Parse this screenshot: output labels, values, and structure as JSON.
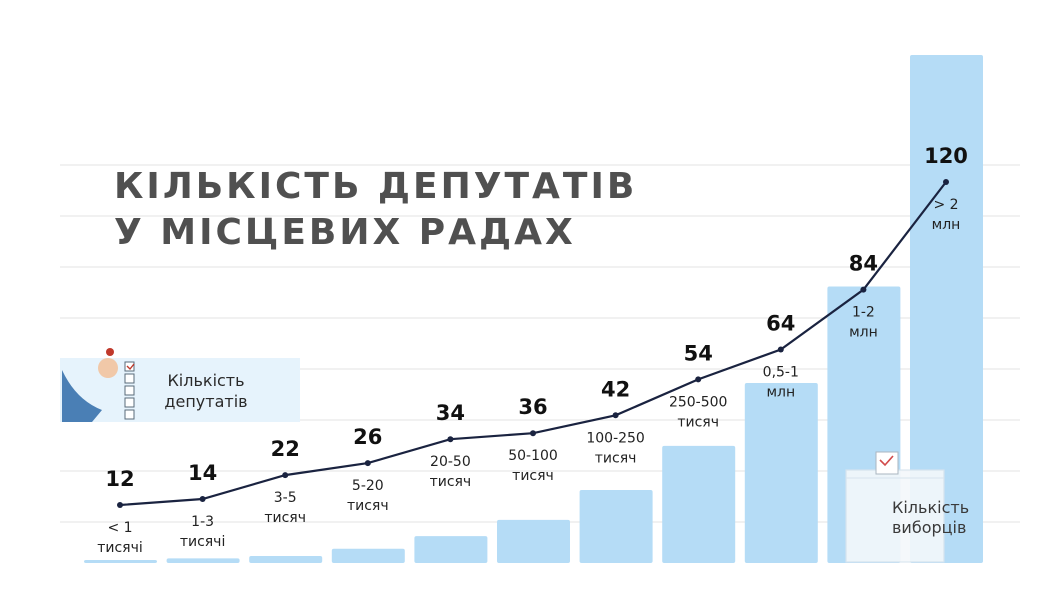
{
  "title": {
    "line1": "КІЛЬКІСТЬ ДЕПУТАТІВ",
    "line2": "У МІСЦЕВИХ РАДАХ"
  },
  "legend": {
    "deputies": "Кількість депутатів",
    "voters": [
      "Кількість",
      "виборців"
    ]
  },
  "chart_data": {
    "type": "bar",
    "categories": [
      [
        "< 1",
        "тисячі"
      ],
      [
        "1-3",
        "тисячі"
      ],
      [
        "3-5",
        "тисяч"
      ],
      [
        "5-20",
        "тисяч"
      ],
      [
        "20-50",
        "тисяч"
      ],
      [
        "50-100",
        "тисяч"
      ],
      [
        "100-250",
        "тисяч"
      ],
      [
        "250-500",
        "тисяч"
      ],
      [
        "0,5-1",
        "млн"
      ],
      [
        "1-2",
        "млн"
      ],
      [
        "> 2",
        "млн"
      ]
    ],
    "series": [
      {
        "name": "Кількість депутатів",
        "kind": "line",
        "values": [
          12,
          14,
          22,
          26,
          34,
          36,
          42,
          54,
          64,
          84,
          120
        ]
      },
      {
        "name": "Кількість виборців",
        "kind": "bar",
        "values": [
          0.5,
          2,
          4,
          12.5,
          35,
          75,
          175,
          375,
          750,
          1500,
          4000
        ]
      }
    ],
    "colors": {
      "bar": "#b5dcf6",
      "line": "#1a2340",
      "label": "#111111",
      "title": "#505050",
      "legend_bg": "#e6f3fc",
      "grid": "#e3e3e3"
    },
    "grid": true
  }
}
